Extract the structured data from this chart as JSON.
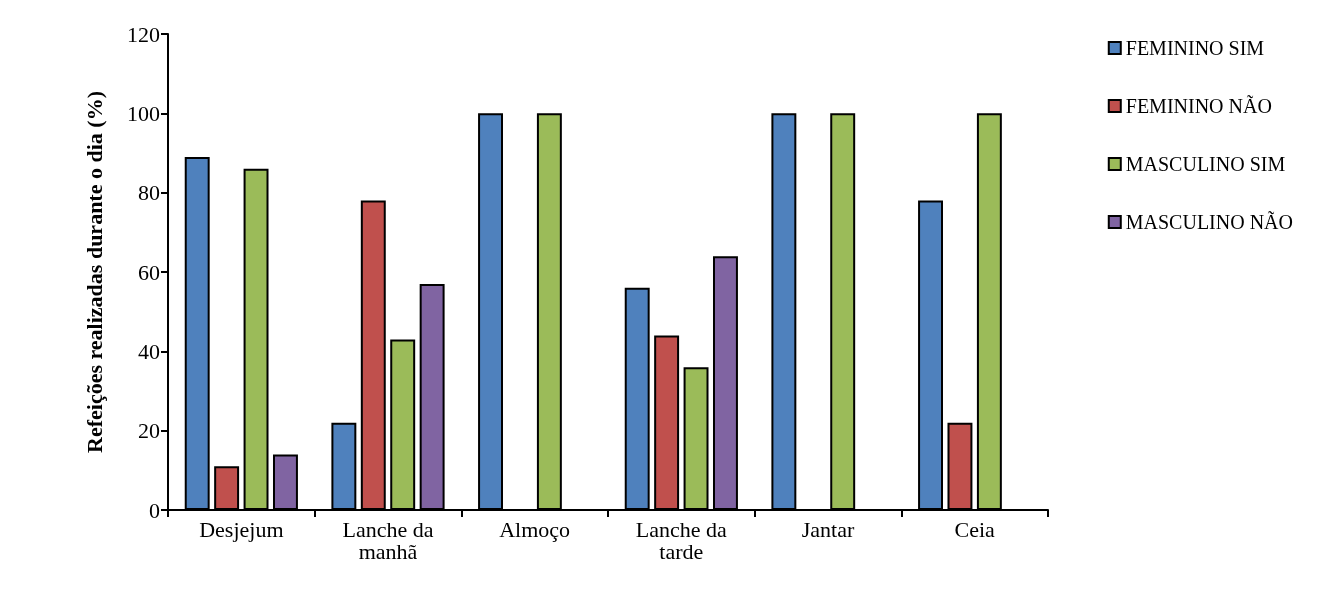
{
  "chart_data": {
    "type": "bar",
    "ylabel": "Refeições realizadas durante o dia (%)",
    "categories": [
      "Desjejum",
      "Lanche da manhã",
      "Almoço",
      "Lanche da tarde",
      "Jantar",
      "Ceia"
    ],
    "series": [
      {
        "name": "FEMININO SIM",
        "color": "#4f81bd",
        "values": [
          89,
          22,
          100,
          56,
          100,
          78
        ]
      },
      {
        "name": "FEMININO NÃO",
        "color": "#c0504d",
        "values": [
          11,
          78,
          0,
          44,
          0,
          22
        ]
      },
      {
        "name": "MASCULINO SIM",
        "color": "#9bbb59",
        "values": [
          86,
          43,
          100,
          36,
          100,
          100
        ]
      },
      {
        "name": "MASCULINO NÃO",
        "color": "#8064a2",
        "values": [
          14,
          57,
          0,
          64,
          0,
          0
        ]
      }
    ],
    "ylim": [
      0,
      120
    ],
    "yticks": [
      0,
      20,
      40,
      60,
      80,
      100,
      120
    ],
    "grid": false,
    "legend": "right"
  }
}
